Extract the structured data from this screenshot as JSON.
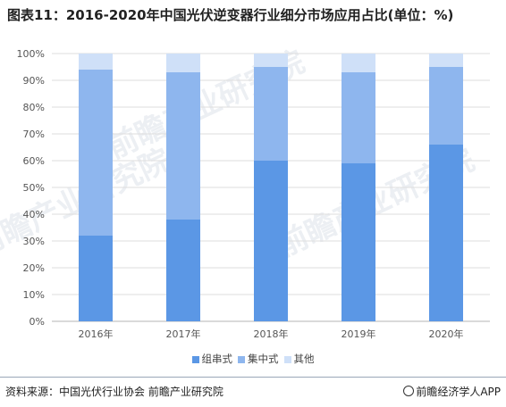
{
  "title": "图表11：2016-2020年中国光伏逆变器行业细分市场应用占比(单位：%)",
  "watermark_text": "前瞻产业研究院",
  "chart_data": {
    "type": "bar",
    "stacked": true,
    "categories": [
      "2016年",
      "2017年",
      "2018年",
      "2019年",
      "2020年"
    ],
    "series": [
      {
        "name": "组串式",
        "values": [
          32,
          38,
          60,
          59,
          66
        ],
        "color": "#5b97e5"
      },
      {
        "name": "集中式",
        "values": [
          62,
          55,
          35,
          34,
          29
        ],
        "color": "#8eb6ee"
      },
      {
        "name": "其他",
        "values": [
          6,
          7,
          5,
          7,
          5
        ],
        "color": "#cfe0f8"
      }
    ],
    "ylim": [
      0,
      100
    ],
    "yticks": [
      "0%",
      "10%",
      "20%",
      "30%",
      "40%",
      "50%",
      "60%",
      "70%",
      "80%",
      "90%",
      "100%"
    ],
    "grid": true,
    "legend_position": "bottom"
  },
  "footer": {
    "source": "资料来源：中国光伏行业协会 前瞻产业研究院",
    "brand": "前瞻经济学人APP"
  }
}
